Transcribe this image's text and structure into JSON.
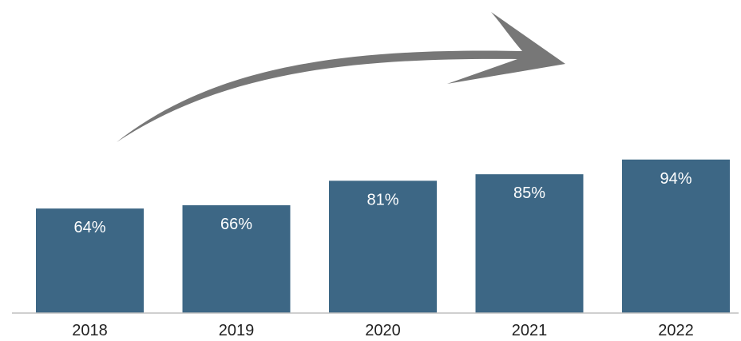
{
  "chart_data": {
    "type": "bar",
    "categories": [
      "2018",
      "2019",
      "2020",
      "2021",
      "2022"
    ],
    "values": [
      64,
      66,
      81,
      85,
      94
    ],
    "value_labels": [
      "64%",
      "66%",
      "81%",
      "85%",
      "94%"
    ],
    "title": "",
    "xlabel": "",
    "ylabel": "",
    "ylim": [
      0,
      100
    ],
    "grid": false,
    "legend": "none",
    "annotation": "upward-trend-arrow",
    "colors": {
      "bar": "#3d6785",
      "arrow": "#777777",
      "axis": "#bfbfbf",
      "label": "#ffffff",
      "tick": "#222222"
    }
  }
}
